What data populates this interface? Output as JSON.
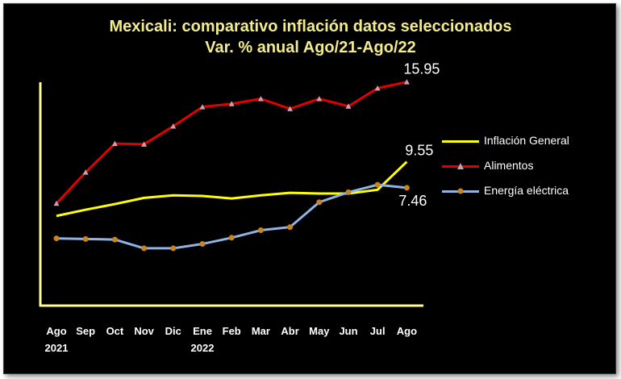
{
  "title_line1": "Mexicali: comparativo inflación datos seleccionados",
  "title_line2": "Var. % anual Ago/21-Ago/22",
  "chart_data": {
    "type": "line",
    "categories": [
      "Ago",
      "Sep",
      "Oct",
      "Nov",
      "Dic",
      "Ene",
      "Feb",
      "Mar",
      "Abr",
      "May",
      "Jun",
      "Jul",
      "Ago"
    ],
    "year_labels": [
      "2021",
      "",
      "",
      "",
      "",
      "2022",
      "",
      "",
      "",
      "",
      "",
      "",
      ""
    ],
    "series": [
      {
        "name": "Inflación General",
        "color": "#ffff00",
        "marker": "none",
        "values": [
          5.2,
          5.7,
          6.15,
          6.65,
          6.85,
          6.8,
          6.6,
          6.85,
          7.05,
          7.0,
          7.0,
          7.3,
          9.55
        ],
        "end_label": "9.55"
      },
      {
        "name": "Alimentos",
        "color": "#e00000",
        "marker": "triangle",
        "values": [
          6.2,
          8.7,
          11.0,
          10.95,
          12.4,
          13.95,
          14.2,
          14.6,
          13.8,
          14.6,
          14.0,
          15.45,
          15.95
        ],
        "end_label": "15.95"
      },
      {
        "name": "Energía eléctrica",
        "color": "#8fb4e3",
        "marker": "circle",
        "values": [
          3.4,
          3.35,
          3.3,
          2.6,
          2.6,
          2.95,
          3.45,
          4.05,
          4.3,
          6.3,
          7.1,
          7.7,
          7.46
        ],
        "end_label": "7.46"
      }
    ],
    "ylim": [
      -2,
      18
    ],
    "grid": false,
    "legend_position": "right"
  }
}
